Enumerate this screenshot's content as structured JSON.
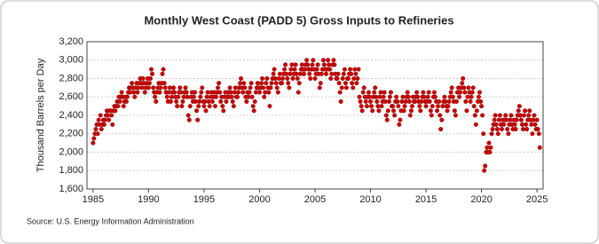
{
  "chart_data": {
    "type": "scatter",
    "title": "Monthly West Coast (PADD 5) Gross Inputs to Refineries",
    "y_label": "Thousand Barrels per Day",
    "source": "Source: U.S. Energy Information Administration",
    "color": "#cc0000",
    "grid": true,
    "xlim": [
      1984.45,
      2025.55
    ],
    "ylim": [
      1600,
      3200
    ],
    "xticks": [
      1985,
      1990,
      1995,
      2000,
      2005,
      2010,
      2015,
      2020,
      2025
    ],
    "yticks": [
      {
        "value": 1600,
        "label": "1,600"
      },
      {
        "value": 1800,
        "label": "1,800"
      },
      {
        "value": 2000,
        "label": "2,000"
      },
      {
        "value": 2200,
        "label": "2,200"
      },
      {
        "value": 2400,
        "label": "2,400"
      },
      {
        "value": 2600,
        "label": "2,600"
      },
      {
        "value": 2800,
        "label": "2,800"
      },
      {
        "value": 3000,
        "label": "3,000"
      },
      {
        "value": 3200,
        "label": "3,200"
      }
    ],
    "x": [
      1985,
      1985.08,
      1985.17,
      1985.25,
      1985.33,
      1985.42,
      1985.5,
      1985.58,
      1985.67,
      1985.75,
      1985.83,
      1985.92,
      1986,
      1986.08,
      1986.17,
      1986.25,
      1986.33,
      1986.42,
      1986.5,
      1986.58,
      1986.67,
      1986.75,
      1986.83,
      1986.92,
      1987,
      1987.08,
      1987.17,
      1987.25,
      1987.33,
      1987.42,
      1987.5,
      1987.58,
      1987.67,
      1987.75,
      1987.83,
      1987.92,
      1988,
      1988.08,
      1988.17,
      1988.25,
      1988.33,
      1988.42,
      1988.5,
      1988.58,
      1988.67,
      1988.75,
      1988.83,
      1988.92,
      1989,
      1989.08,
      1989.17,
      1989.25,
      1989.33,
      1989.42,
      1989.5,
      1989.58,
      1989.67,
      1989.75,
      1989.83,
      1989.92,
      1990,
      1990.08,
      1990.17,
      1990.25,
      1990.33,
      1990.42,
      1990.5,
      1990.58,
      1990.67,
      1990.75,
      1990.83,
      1990.92,
      1991,
      1991.08,
      1991.17,
      1991.25,
      1991.33,
      1991.42,
      1991.5,
      1991.58,
      1991.67,
      1991.75,
      1991.83,
      1991.92,
      1992,
      1992.08,
      1992.17,
      1992.25,
      1992.33,
      1992.42,
      1992.5,
      1992.58,
      1992.67,
      1992.75,
      1992.83,
      1992.92,
      1993,
      1993.08,
      1993.17,
      1993.25,
      1993.33,
      1993.42,
      1993.5,
      1993.58,
      1993.67,
      1993.75,
      1993.83,
      1993.92,
      1994,
      1994.08,
      1994.17,
      1994.25,
      1994.33,
      1994.42,
      1994.5,
      1994.58,
      1994.67,
      1994.75,
      1994.83,
      1994.92,
      1995,
      1995.08,
      1995.17,
      1995.25,
      1995.33,
      1995.42,
      1995.5,
      1995.58,
      1995.67,
      1995.75,
      1995.83,
      1995.92,
      1996,
      1996.08,
      1996.17,
      1996.25,
      1996.33,
      1996.42,
      1996.5,
      1996.58,
      1996.67,
      1996.75,
      1996.83,
      1996.92,
      1997,
      1997.08,
      1997.17,
      1997.25,
      1997.33,
      1997.42,
      1997.5,
      1997.58,
      1997.67,
      1997.75,
      1997.83,
      1997.92,
      1998,
      1998.08,
      1998.17,
      1998.25,
      1998.33,
      1998.42,
      1998.5,
      1998.58,
      1998.67,
      1998.75,
      1998.83,
      1998.92,
      1999,
      1999.08,
      1999.17,
      1999.25,
      1999.33,
      1999.42,
      1999.5,
      1999.58,
      1999.67,
      1999.75,
      1999.83,
      1999.92,
      2000,
      2000.08,
      2000.17,
      2000.25,
      2000.33,
      2000.42,
      2000.5,
      2000.58,
      2000.67,
      2000.75,
      2000.83,
      2000.92,
      2001,
      2001.08,
      2001.17,
      2001.25,
      2001.33,
      2001.42,
      2001.5,
      2001.58,
      2001.67,
      2001.75,
      2001.83,
      2001.92,
      2002,
      2002.08,
      2002.17,
      2002.25,
      2002.33,
      2002.42,
      2002.5,
      2002.58,
      2002.67,
      2002.75,
      2002.83,
      2002.92,
      2003,
      2003.08,
      2003.17,
      2003.25,
      2003.33,
      2003.42,
      2003.5,
      2003.58,
      2003.67,
      2003.75,
      2003.83,
      2003.92,
      2004,
      2004.08,
      2004.17,
      2004.25,
      2004.33,
      2004.42,
      2004.5,
      2004.58,
      2004.67,
      2004.75,
      2004.83,
      2004.92,
      2005,
      2005.08,
      2005.17,
      2005.25,
      2005.33,
      2005.42,
      2005.5,
      2005.58,
      2005.67,
      2005.75,
      2005.83,
      2005.92,
      2006,
      2006.08,
      2006.17,
      2006.25,
      2006.33,
      2006.42,
      2006.5,
      2006.58,
      2006.67,
      2006.75,
      2006.83,
      2006.92,
      2007,
      2007.08,
      2007.17,
      2007.25,
      2007.33,
      2007.42,
      2007.5,
      2007.58,
      2007.67,
      2007.75,
      2007.83,
      2007.92,
      2008,
      2008.08,
      2008.17,
      2008.25,
      2008.33,
      2008.42,
      2008.5,
      2008.58,
      2008.67,
      2008.75,
      2008.83,
      2008.92,
      2009,
      2009.08,
      2009.17,
      2009.25,
      2009.33,
      2009.42,
      2009.5,
      2009.58,
      2009.67,
      2009.75,
      2009.83,
      2009.92,
      2010,
      2010.08,
      2010.17,
      2010.25,
      2010.33,
      2010.42,
      2010.5,
      2010.58,
      2010.67,
      2010.75,
      2010.83,
      2010.92,
      2011,
      2011.08,
      2011.17,
      2011.25,
      2011.33,
      2011.42,
      2011.5,
      2011.58,
      2011.67,
      2011.75,
      2011.83,
      2011.92,
      2012,
      2012.08,
      2012.17,
      2012.25,
      2012.33,
      2012.42,
      2012.5,
      2012.58,
      2012.67,
      2012.75,
      2012.83,
      2012.92,
      2013,
      2013.08,
      2013.17,
      2013.25,
      2013.33,
      2013.42,
      2013.5,
      2013.58,
      2013.67,
      2013.75,
      2013.83,
      2013.92,
      2014,
      2014.08,
      2014.17,
      2014.25,
      2014.33,
      2014.42,
      2014.5,
      2014.58,
      2014.67,
      2014.75,
      2014.83,
      2014.92,
      2015,
      2015.08,
      2015.17,
      2015.25,
      2015.33,
      2015.42,
      2015.5,
      2015.58,
      2015.67,
      2015.75,
      2015.83,
      2015.92,
      2016,
      2016.08,
      2016.17,
      2016.25,
      2016.33,
      2016.42,
      2016.5,
      2016.58,
      2016.67,
      2016.75,
      2016.83,
      2016.92,
      2017,
      2017.08,
      2017.17,
      2017.25,
      2017.33,
      2017.42,
      2017.5,
      2017.58,
      2017.67,
      2017.75,
      2017.83,
      2017.92,
      2018,
      2018.08,
      2018.17,
      2018.25,
      2018.33,
      2018.42,
      2018.5,
      2018.58,
      2018.67,
      2018.75,
      2018.83,
      2018.92,
      2019,
      2019.08,
      2019.17,
      2019.25,
      2019.33,
      2019.42,
      2019.5,
      2019.58,
      2019.67,
      2019.75,
      2019.83,
      2019.92,
      2020,
      2020.08,
      2020.17,
      2020.25,
      2020.33,
      2020.42,
      2020.5,
      2020.58,
      2020.67,
      2020.75,
      2020.83,
      2020.92,
      2021,
      2021.08,
      2021.17,
      2021.25,
      2021.33,
      2021.42,
      2021.5,
      2021.58,
      2021.67,
      2021.75,
      2021.83,
      2021.92,
      2022,
      2022.08,
      2022.17,
      2022.25,
      2022.33,
      2022.42,
      2022.5,
      2022.58,
      2022.67,
      2022.75,
      2022.83,
      2022.92,
      2023,
      2023.08,
      2023.17,
      2023.25,
      2023.33,
      2023.42,
      2023.5,
      2023.58,
      2023.67,
      2023.75,
      2023.83,
      2023.92,
      2024,
      2024.08,
      2024.17,
      2024.25,
      2024.33,
      2024.42,
      2024.5,
      2024.58,
      2024.67,
      2024.75,
      2024.83,
      2024.92,
      2025,
      2025.08,
      2025.17,
      2025.25
    ],
    "values": [
      2100,
      2150,
      2200,
      2250,
      2300,
      2200,
      2350,
      2300,
      2400,
      2250,
      2300,
      2350,
      2300,
      2350,
      2400,
      2450,
      2400,
      2350,
      2450,
      2450,
      2400,
      2300,
      2450,
      2500,
      2450,
      2500,
      2550,
      2500,
      2600,
      2550,
      2600,
      2650,
      2600,
      2500,
      2550,
      2600,
      2550,
      2600,
      2650,
      2700,
      2650,
      2700,
      2750,
      2700,
      2650,
      2600,
      2700,
      2750,
      2650,
      2700,
      2750,
      2800,
      2750,
      2700,
      2800,
      2750,
      2650,
      2700,
      2750,
      2800,
      2700,
      2750,
      2800,
      2900,
      2850,
      2700,
      2650,
      2600,
      2550,
      2650,
      2700,
      2750,
      2650,
      2700,
      2750,
      2850,
      2900,
      2750,
      2700,
      2650,
      2600,
      2550,
      2650,
      2700,
      2550,
      2600,
      2650,
      2700,
      2650,
      2600,
      2550,
      2500,
      2600,
      2650,
      2700,
      2650,
      2500,
      2550,
      2600,
      2650,
      2700,
      2650,
      2600,
      2400,
      2350,
      2500,
      2600,
      2650,
      2550,
      2600,
      2650,
      2550,
      2450,
      2350,
      2500,
      2550,
      2600,
      2650,
      2700,
      2550,
      2500,
      2550,
      2450,
      2600,
      2650,
      2550,
      2500,
      2600,
      2650,
      2550,
      2600,
      2650,
      2500,
      2600,
      2650,
      2700,
      2750,
      2650,
      2550,
      2600,
      2500,
      2450,
      2600,
      2650,
      2550,
      2600,
      2650,
      2600,
      2700,
      2650,
      2600,
      2550,
      2500,
      2650,
      2700,
      2600,
      2600,
      2650,
      2700,
      2750,
      2800,
      2700,
      2650,
      2750,
      2700,
      2600,
      2550,
      2650,
      2600,
      2650,
      2700,
      2750,
      2600,
      2500,
      2450,
      2550,
      2650,
      2700,
      2750,
      2700,
      2650,
      2700,
      2750,
      2800,
      2700,
      2600,
      2650,
      2750,
      2800,
      2700,
      2650,
      2500,
      2700,
      2750,
      2800,
      2850,
      2900,
      2800,
      2750,
      2700,
      2650,
      2800,
      2850,
      2750,
      2750,
      2800,
      2850,
      2900,
      2950,
      2850,
      2800,
      2750,
      2700,
      2850,
      2900,
      2950,
      2800,
      2850,
      2900,
      2950,
      2850,
      2800,
      2650,
      2750,
      2850,
      2900,
      2950,
      2900,
      2850,
      2900,
      2950,
      3000,
      2950,
      2900,
      2850,
      2800,
      2900,
      2950,
      3000,
      2900,
      2800,
      2850,
      2900,
      2950,
      2850,
      2700,
      2750,
      2850,
      2900,
      3000,
      2950,
      2900,
      2850,
      2900,
      3000,
      2950,
      2900,
      2800,
      2850,
      2950,
      3000,
      2950,
      2850,
      2800,
      2800,
      2850,
      2750,
      2650,
      2550,
      2700,
      2800,
      2850,
      2900,
      2750,
      2700,
      2800,
      2800,
      2850,
      2900,
      2850,
      2750,
      2700,
      2800,
      2900,
      2850,
      2750,
      2800,
      2900,
      2600,
      2550,
      2500,
      2450,
      2650,
      2700,
      2600,
      2550,
      2500,
      2600,
      2650,
      2600,
      2550,
      2500,
      2450,
      2600,
      2650,
      2700,
      2600,
      2550,
      2500,
      2450,
      2600,
      2650,
      2500,
      2550,
      2600,
      2650,
      2550,
      2400,
      2350,
      2450,
      2550,
      2600,
      2650,
      2500,
      2500,
      2450,
      2400,
      2550,
      2600,
      2550,
      2500,
      2300,
      2350,
      2450,
      2550,
      2600,
      2450,
      2500,
      2550,
      2600,
      2650,
      2600,
      2550,
      2400,
      2450,
      2500,
      2600,
      2550,
      2550,
      2600,
      2650,
      2600,
      2550,
      2500,
      2450,
      2550,
      2600,
      2650,
      2600,
      2550,
      2500,
      2550,
      2600,
      2650,
      2550,
      2450,
      2400,
      2500,
      2600,
      2650,
      2600,
      2550,
      2450,
      2500,
      2550,
      2400,
      2250,
      2350,
      2500,
      2550,
      2600,
      2550,
      2500,
      2450,
      2500,
      2550,
      2600,
      2650,
      2700,
      2600,
      2550,
      2450,
      2400,
      2550,
      2650,
      2700,
      2600,
      2650,
      2700,
      2750,
      2800,
      2700,
      2650,
      2550,
      2450,
      2600,
      2700,
      2650,
      2550,
      2600,
      2650,
      2700,
      2500,
      2400,
      2300,
      2450,
      2550,
      2600,
      2650,
      2550,
      2500,
      2400,
      2200,
      1800,
      1850,
      2000,
      2050,
      2000,
      2100,
      2000,
      2050,
      2200,
      2250,
      2300,
      2350,
      2400,
      2300,
      2250,
      2200,
      2350,
      2400,
      2300,
      2250,
      2350,
      2300,
      2350,
      2400,
      2350,
      2250,
      2200,
      2300,
      2350,
      2400,
      2300,
      2250,
      2350,
      2300,
      2250,
      2350,
      2400,
      2450,
      2500,
      2400,
      2350,
      2300,
      2250,
      2400,
      2450,
      2300,
      2250,
      2350,
      2400,
      2450,
      2350,
      2300,
      2200,
      2350,
      2400,
      2300,
      2250,
      2350,
      2250,
      2200,
      2050
    ]
  }
}
